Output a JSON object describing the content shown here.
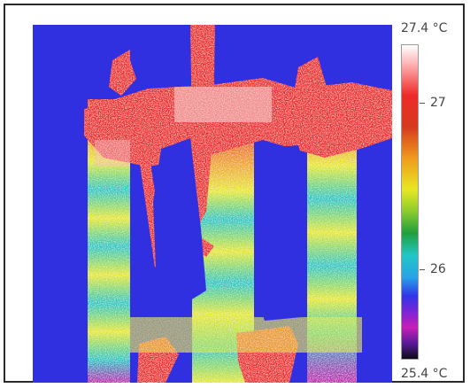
{
  "scale": {
    "max_label": "27.4 °C",
    "min_label": "25.4 °C",
    "ticks": [
      {
        "label": "27",
        "value": 27
      },
      {
        "label": "26",
        "value": 26
      }
    ]
  },
  "colors": {
    "background": "#3030e0",
    "hot": "#ee2a2a",
    "warm": "#e8e824",
    "cool": "#22c7c7",
    "accent_magenta": "#c71fb4"
  }
}
